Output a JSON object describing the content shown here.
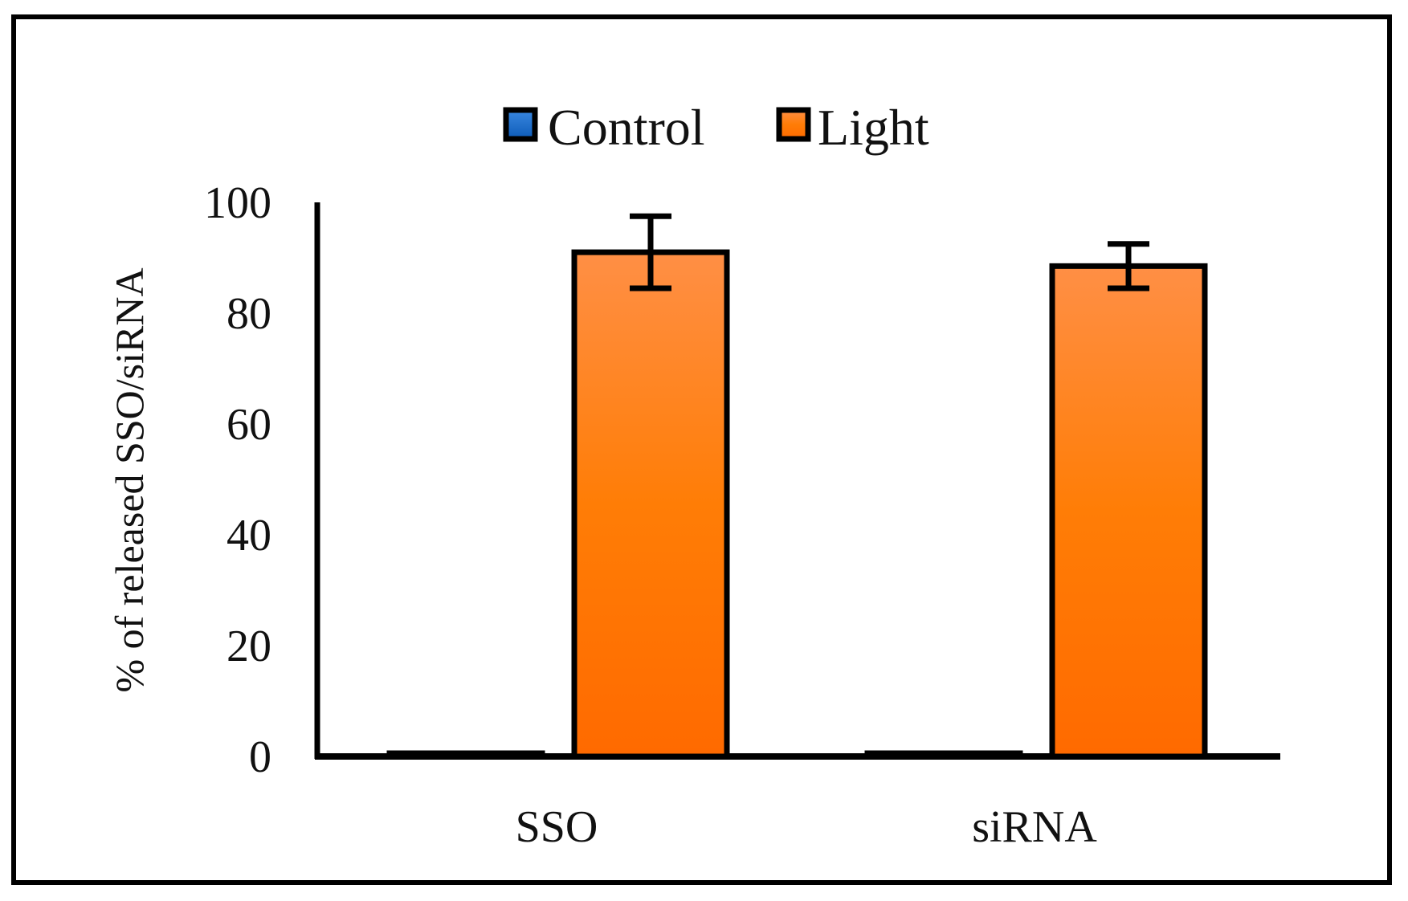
{
  "chart_data": {
    "type": "bar",
    "title": "",
    "xlabel": "",
    "ylabel": "% of released SSO/siRNA",
    "ylim": [
      0,
      100
    ],
    "yticks": [
      0,
      20,
      40,
      60,
      80,
      100
    ],
    "categories": [
      "SSO",
      "siRNA"
    ],
    "series": [
      {
        "name": "Control",
        "values": [
          0.5,
          0.5
        ],
        "errors": [
          0,
          0
        ],
        "color": "#1565c0"
      },
      {
        "name": "Light",
        "values": [
          91,
          88.5
        ],
        "errors": [
          6.5,
          4
        ],
        "color": "#ff7f0e"
      }
    ],
    "grid": false,
    "legend": "top-center"
  }
}
